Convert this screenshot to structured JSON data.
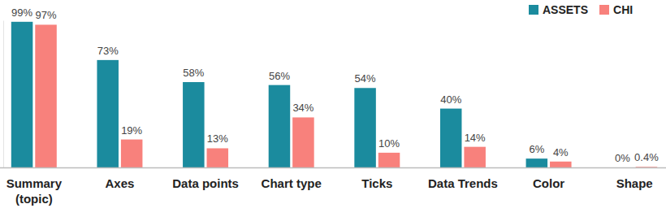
{
  "chart_data": {
    "type": "bar",
    "categories": [
      "Summary (topic)",
      "Axes",
      "Data points",
      "Chart type",
      "Ticks",
      "Data Trends",
      "Color",
      "Shape"
    ],
    "series": [
      {
        "name": "ASSETS",
        "color": "#1b8b9e",
        "values": [
          99,
          73,
          58,
          56,
          54,
          40,
          6,
          0
        ],
        "value_labels": [
          "99%",
          "73%",
          "58%",
          "56%",
          "54%",
          "40%",
          "6%",
          "0%"
        ]
      },
      {
        "name": "CHI",
        "color": "#f8817c",
        "values": [
          97,
          19,
          13,
          34,
          10,
          14,
          4,
          0.4
        ],
        "value_labels": [
          "97%",
          "19%",
          "13%",
          "34%",
          "10%",
          "14%",
          "4%",
          "0.4%"
        ]
      }
    ],
    "ylim": [
      0,
      100
    ],
    "yticks": [],
    "tick_labels": "x",
    "data_labels": true,
    "legend": "top-right",
    "grid": false
  }
}
